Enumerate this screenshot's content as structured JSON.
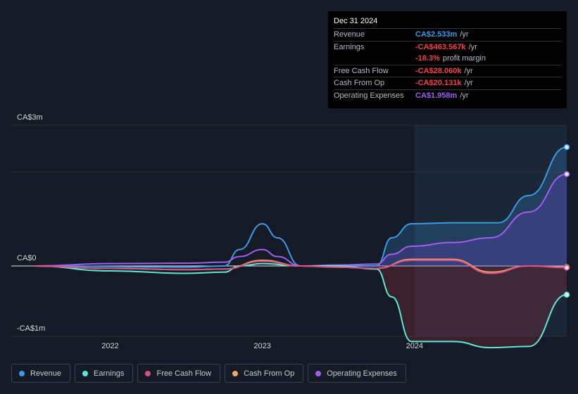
{
  "tooltip": {
    "date": "Dec 31 2024",
    "rows": [
      {
        "label": "Revenue",
        "value": "CA$2.533m",
        "unit": "/yr",
        "color": "#3a9be6"
      },
      {
        "label": "Earnings",
        "value": "-CA$463.567k",
        "unit": "/yr",
        "color": "#f0424c"
      },
      {
        "label": "",
        "value": "-18.3%",
        "unit": "profit margin",
        "color": "#f0424c"
      },
      {
        "label": "Free Cash Flow",
        "value": "-CA$28.060k",
        "unit": "/yr",
        "color": "#f0424c"
      },
      {
        "label": "Cash From Op",
        "value": "-CA$20.131k",
        "unit": "/yr",
        "color": "#f0424c"
      },
      {
        "label": "Operating Expenses",
        "value": "CA$1.958m",
        "unit": "/yr",
        "color": "#a35cf0"
      }
    ]
  },
  "chart_data": {
    "type": "area",
    "title": "",
    "xlabel": "",
    "ylabel": "",
    "y_tick_labels": [
      "CA$3m",
      "CA$0",
      "-CA$1m"
    ],
    "y_ticks": [
      3.0,
      0,
      -1.0
    ],
    "ylim": [
      -1.15,
      3.0
    ],
    "x_tick_labels": [
      "2022",
      "2023",
      "2024"
    ],
    "x_ticks": [
      2022.0,
      2023.0,
      2024.0
    ],
    "xlim": [
      2021.35,
      2025.0
    ],
    "highlight_start": 2024.0,
    "series": [
      {
        "name": "Revenue",
        "color": "#3a9be6",
        "points": [
          [
            2021.5,
            0
          ],
          [
            2022.5,
            -0.02
          ],
          [
            2022.75,
            0
          ],
          [
            2022.85,
            0.35
          ],
          [
            2023.0,
            0.9
          ],
          [
            2023.1,
            0.6
          ],
          [
            2023.25,
            0
          ],
          [
            2023.5,
            0
          ],
          [
            2023.75,
            0
          ],
          [
            2023.85,
            0.6
          ],
          [
            2023.98,
            0.9
          ],
          [
            2024.25,
            0.92
          ],
          [
            2024.5,
            0.92
          ],
          [
            2024.55,
            0.92
          ],
          [
            2024.75,
            1.5
          ],
          [
            2025.0,
            2.533
          ]
        ]
      },
      {
        "name": "Earnings",
        "color": "#5ee8d4",
        "points": [
          [
            2021.5,
            0
          ],
          [
            2022.0,
            -0.08
          ],
          [
            2022.5,
            -0.12
          ],
          [
            2022.75,
            -0.1
          ],
          [
            2022.85,
            0
          ],
          [
            2023.0,
            0.05
          ],
          [
            2023.25,
            0
          ],
          [
            2023.5,
            0
          ],
          [
            2023.75,
            -0.05
          ],
          [
            2023.85,
            -0.5
          ],
          [
            2023.98,
            -1.22
          ],
          [
            2024.25,
            -1.22
          ],
          [
            2024.5,
            -1.32
          ],
          [
            2024.75,
            -1.3
          ],
          [
            2025.0,
            -0.464
          ]
        ]
      },
      {
        "name": "Free Cash Flow",
        "color": "#d94f88",
        "points": [
          [
            2021.5,
            0
          ],
          [
            2022.0,
            -0.04
          ],
          [
            2022.5,
            -0.06
          ],
          [
            2022.75,
            -0.05
          ],
          [
            2023.0,
            0.1
          ],
          [
            2023.25,
            0
          ],
          [
            2023.5,
            -0.02
          ],
          [
            2023.75,
            -0.04
          ],
          [
            2023.98,
            0.12
          ],
          [
            2024.25,
            0.12
          ],
          [
            2024.5,
            -0.12
          ],
          [
            2024.75,
            0
          ],
          [
            2025.0,
            -0.028
          ]
        ]
      },
      {
        "name": "Cash From Op",
        "color": "#f0a860",
        "points": [
          [
            2021.5,
            0
          ],
          [
            2022.0,
            -0.04
          ],
          [
            2022.5,
            -0.06
          ],
          [
            2022.75,
            -0.05
          ],
          [
            2023.0,
            0.12
          ],
          [
            2023.25,
            0
          ],
          [
            2023.5,
            -0.02
          ],
          [
            2023.75,
            -0.04
          ],
          [
            2023.98,
            0.14
          ],
          [
            2024.25,
            0.14
          ],
          [
            2024.5,
            -0.1
          ],
          [
            2024.75,
            0
          ],
          [
            2025.0,
            -0.02
          ]
        ]
      },
      {
        "name": "Operating Expenses",
        "color": "#a35cf0",
        "points": [
          [
            2021.5,
            0
          ],
          [
            2022.0,
            0.05
          ],
          [
            2022.5,
            0.06
          ],
          [
            2022.75,
            0.08
          ],
          [
            2022.85,
            0.2
          ],
          [
            2023.0,
            0.35
          ],
          [
            2023.1,
            0.2
          ],
          [
            2023.25,
            0
          ],
          [
            2023.5,
            0.02
          ],
          [
            2023.75,
            0.04
          ],
          [
            2023.85,
            0.25
          ],
          [
            2023.98,
            0.42
          ],
          [
            2024.25,
            0.5
          ],
          [
            2024.5,
            0.6
          ],
          [
            2024.75,
            1.15
          ],
          [
            2025.0,
            1.958
          ]
        ]
      }
    ],
    "legend_position": "bottom-left"
  }
}
